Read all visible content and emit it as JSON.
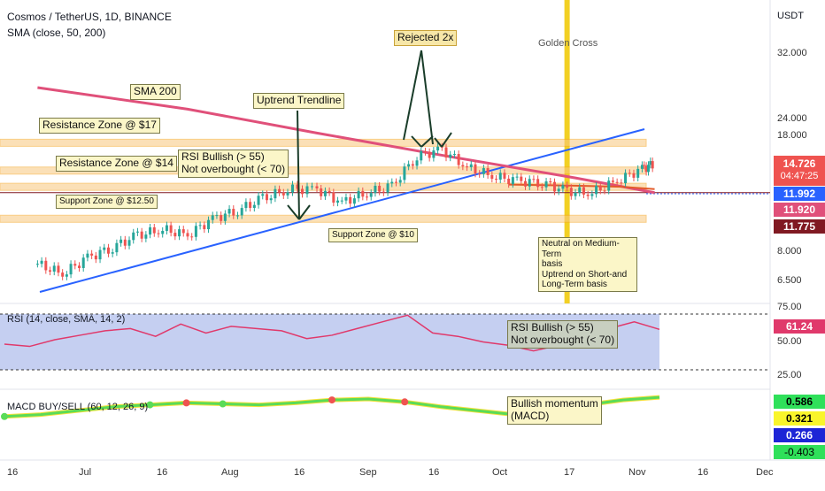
{
  "header": {
    "symbol_line": "Cosmos / TetherUS, 1D, BINANCE",
    "sma_label": "SMA (close, 50, 200)",
    "currency": "USDT"
  },
  "price_axis": {
    "ticks": [
      "32.000",
      "24.000",
      "18.000",
      "8.000",
      "6.500"
    ],
    "boxes": {
      "last": "14.726",
      "countdown": "04:47:25",
      "blue": "11.992",
      "red": "11.920",
      "darkred": "11.775"
    }
  },
  "rsi_axis": {
    "ticks": [
      "75.00",
      "50.00",
      "25.00"
    ],
    "value": "61.24"
  },
  "macd_axis": {
    "values": [
      "0.586",
      "0.321",
      "0.266",
      "-0.403"
    ]
  },
  "x_axis": {
    "ticks": [
      "16",
      "Jul",
      "16",
      "Aug",
      "16",
      "Sep",
      "16",
      "Oct",
      "17",
      "Nov",
      "16",
      "Dec"
    ]
  },
  "annotations": {
    "rejected": "Rejected 2x",
    "golden_cross": "Golden Cross",
    "sma200": "SMA 200",
    "uptrend": "Uptrend Trendline",
    "res17": "Resistance Zone @ $17",
    "res14": "Resistance Zone @ $14",
    "rsi_note_1": "RSI Bullish (> 55)",
    "rsi_note_2": "Not overbought (< 70)",
    "sup125": "Support Zone @ $12.50",
    "sup10": "Support Zone @ $10",
    "neutral_1": "Neutral on Medium-Term",
    "neutral_2": "basis",
    "neutral_3": "Uptrend on Short-and",
    "neutral_4": "Long-Term basis",
    "rsi_box_1": "RSI Bullish (> 55)",
    "rsi_box_2": "Not overbought (< 70)",
    "macd_box_1": "Bullish momentum",
    "macd_box_2": "(MACD)"
  },
  "rsi_label": "RSI (14, close, SMA, 14, 2)",
  "macd_label": "MACD BUY/SELL (60, 12, 26, 9)",
  "colors": {
    "up": "#26a69a",
    "down": "#ef5350",
    "sma200": "#e0507a",
    "trend": "#2962ff",
    "golden": "#f2d024",
    "rsi_line": "#e0396b",
    "rsi_band": "#b6c3ee"
  },
  "chart_data": {
    "type": "candlestick",
    "x": [
      "Jun 16",
      "Jul",
      "Jul 16",
      "Aug",
      "Aug 16",
      "Sep",
      "Sep 16",
      "Oct",
      "Oct 17",
      "Nov"
    ],
    "price_series": [
      {
        "date": "Jun 10",
        "close": 7.3
      },
      {
        "date": "Jun 16",
        "close": 6.8
      },
      {
        "date": "Jun 22",
        "close": 7.6
      },
      {
        "date": "Jun 28",
        "close": 8.2
      },
      {
        "date": "Jul 4",
        "close": 8.9
      },
      {
        "date": "Jul 10",
        "close": 9.3
      },
      {
        "date": "Jul 16",
        "close": 8.9
      },
      {
        "date": "Jul 22",
        "close": 10.0
      },
      {
        "date": "Jul 28",
        "close": 10.6
      },
      {
        "date": "Aug 3",
        "close": 11.5
      },
      {
        "date": "Aug 9",
        "close": 12.3
      },
      {
        "date": "Aug 16",
        "close": 12.3
      },
      {
        "date": "Aug 22",
        "close": 11.2
      },
      {
        "date": "Aug 28",
        "close": 12.0
      },
      {
        "date": "Sep 3",
        "close": 12.5
      },
      {
        "date": "Sep 9",
        "close": 15.5
      },
      {
        "date": "Sep 15",
        "close": 16.2
      },
      {
        "date": "Sep 21",
        "close": 14.3
      },
      {
        "date": "Sep 27",
        "close": 13.5
      },
      {
        "date": "Oct 3",
        "close": 13.0
      },
      {
        "date": "Oct 9",
        "close": 12.9
      },
      {
        "date": "Oct 15",
        "close": 12.1
      },
      {
        "date": "Oct 21",
        "close": 12.0
      },
      {
        "date": "Oct 27",
        "close": 13.0
      },
      {
        "date": "Nov 2",
        "close": 14.2
      },
      {
        "date": "Nov 5",
        "close": 14.7
      }
    ],
    "sma200": [
      {
        "date": "Jun 10",
        "value": 25.0
      },
      {
        "date": "Jul 16",
        "value": 21.5
      },
      {
        "date": "Aug 16",
        "value": 18.2
      },
      {
        "date": "Sep 16",
        "value": 15.5
      },
      {
        "date": "Oct 17",
        "value": 13.3
      },
      {
        "date": "Nov 5",
        "value": 12.0
      }
    ],
    "sma50": [
      {
        "date": "Oct 1",
        "value": 12.7
      },
      {
        "date": "Oct 17",
        "value": 12.6
      },
      {
        "date": "Oct 28",
        "value": 12.5
      },
      {
        "date": "Nov 5",
        "value": 12.3
      }
    ],
    "levels": [
      17,
      14,
      12.5,
      10
    ],
    "rsi": [
      48,
      46,
      52,
      56,
      60,
      62,
      55,
      66,
      58,
      64,
      62,
      60,
      53,
      56,
      62,
      68,
      74,
      58,
      55,
      50,
      47,
      42,
      47,
      52,
      62,
      68,
      61.24
    ],
    "rsi_bands": [
      25,
      75
    ],
    "macd": [
      -0.4,
      -0.3,
      -0.1,
      0.1,
      0.2,
      0.3,
      0.25,
      0.2,
      0.3,
      0.45,
      0.5,
      0.35,
      0.1,
      -0.1,
      -0.3,
      -0.1,
      0.2,
      0.45,
      0.586
    ]
  }
}
